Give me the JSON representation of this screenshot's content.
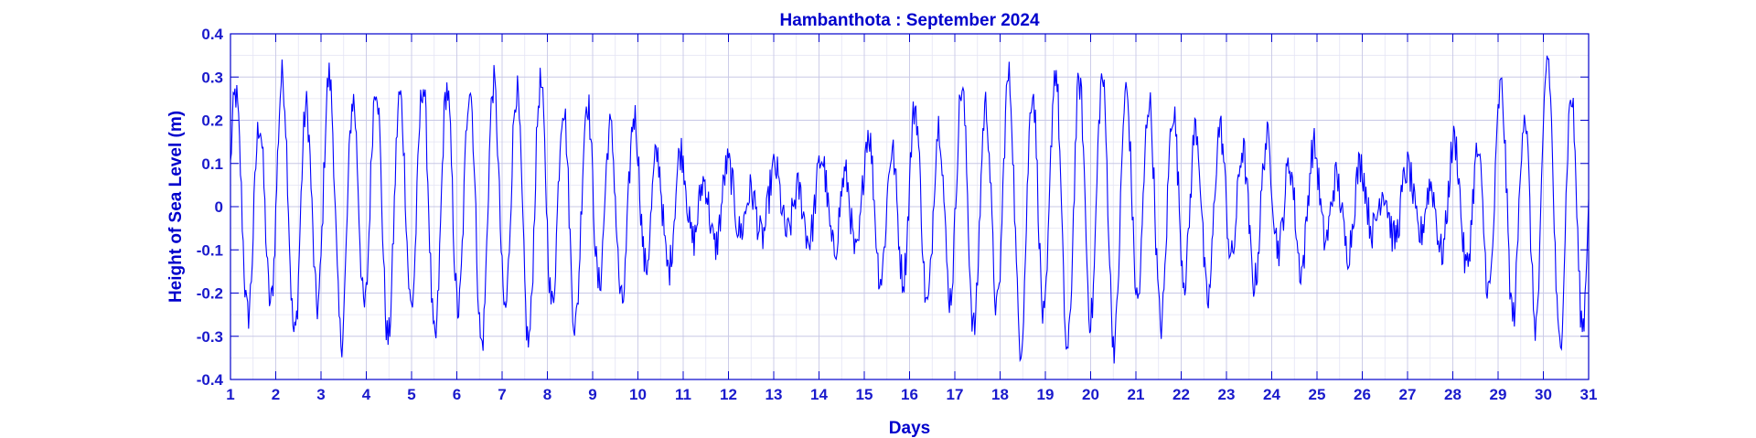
{
  "chart_data": {
    "type": "line",
    "title": "Hambanthota : September 2024",
    "xlabel": "Days",
    "ylabel": "Height of Sea Level (m)",
    "xlim": [
      1,
      31
    ],
    "ylim": [
      -0.4,
      0.4
    ],
    "grid": true,
    "x_ticks": [
      1,
      2,
      3,
      4,
      5,
      6,
      7,
      8,
      9,
      10,
      11,
      12,
      13,
      14,
      15,
      16,
      17,
      18,
      19,
      20,
      21,
      22,
      23,
      24,
      25,
      26,
      27,
      28,
      29,
      30,
      31
    ],
    "y_ticks": [
      0.4,
      0.3,
      0.2,
      0.1,
      0,
      -0.1,
      -0.2,
      -0.3,
      -0.4
    ],
    "sample_interval_days": 0.02,
    "colors": {
      "line": "#0000ff",
      "axis": "#0000cc",
      "grid": "#c8c8e6",
      "tick_text": "#1a1acc"
    },
    "series": [
      {
        "name": "",
        "envelope_semi_diurnal": {
          "x": [
            1,
            2,
            3,
            4,
            5,
            6,
            7,
            8,
            9,
            10,
            11,
            12,
            13,
            14,
            15,
            16,
            17,
            18,
            19,
            20,
            21,
            22,
            23,
            24,
            25,
            26,
            27,
            28,
            29,
            30,
            31
          ],
          "amplitude": [
            0.2,
            0.26,
            0.27,
            0.27,
            0.27,
            0.28,
            0.28,
            0.27,
            0.22,
            0.18,
            0.1,
            0.07,
            0.06,
            0.08,
            0.13,
            0.19,
            0.24,
            0.27,
            0.3,
            0.3,
            0.26,
            0.21,
            0.16,
            0.13,
            0.11,
            0.07,
            0.06,
            0.11,
            0.22,
            0.3,
            0.3
          ]
        },
        "envelope_diurnal": {
          "x": [
            1,
            2,
            3,
            4,
            5,
            6,
            7,
            8,
            9,
            10,
            11,
            12,
            13,
            14,
            15,
            16,
            17,
            18,
            19,
            20,
            21,
            22,
            23,
            24,
            25,
            26,
            27,
            28,
            29,
            30,
            31
          ],
          "amplitude": [
            0.06,
            0.05,
            0.05,
            0.04,
            0.04,
            0.04,
            0.04,
            0.04,
            0.04,
            0.04,
            0.03,
            0.03,
            0.03,
            0.03,
            0.04,
            0.04,
            0.04,
            0.04,
            0.04,
            0.04,
            0.04,
            0.04,
            0.04,
            0.04,
            0.04,
            0.03,
            0.03,
            0.04,
            0.05,
            0.05,
            0.05
          ]
        },
        "noise_amplitude_m": 0.045
      }
    ]
  }
}
